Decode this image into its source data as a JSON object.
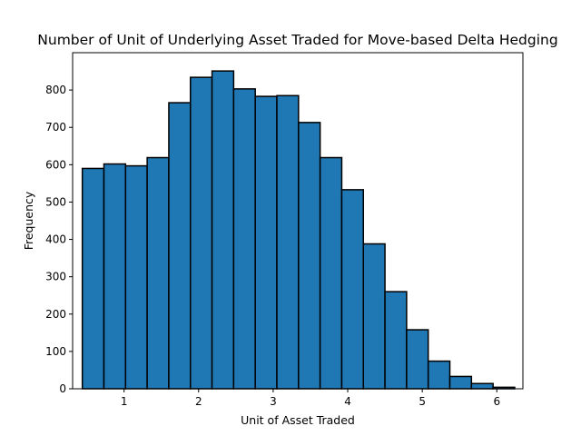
{
  "chart_data": {
    "type": "bar",
    "title": "Number of Unit of Underlying Asset Traded for Move-based Delta Hedging",
    "xlabel": "Unit of Asset Traded",
    "ylabel": "Frequency",
    "xlim": [
      0.31,
      6.35
    ],
    "ylim": [
      0,
      900
    ],
    "xticks": [
      1,
      2,
      3,
      4,
      5,
      6
    ],
    "yticks": [
      0,
      100,
      200,
      300,
      400,
      500,
      600,
      700,
      800
    ],
    "bin_edges": [
      0.44,
      0.73,
      1.02,
      1.31,
      1.6,
      1.89,
      2.18,
      2.47,
      2.76,
      3.05,
      3.34,
      3.63,
      3.92,
      4.21,
      4.5,
      4.79,
      5.08,
      5.37,
      5.66,
      5.95,
      6.24
    ],
    "values": [
      590,
      602,
      597,
      619,
      766,
      834,
      851,
      803,
      783,
      785,
      713,
      619,
      533,
      388,
      260,
      158,
      74,
      33,
      14,
      4
    ],
    "bar_color": "#1f77b4",
    "edge_color": "#000000",
    "grid": false
  }
}
